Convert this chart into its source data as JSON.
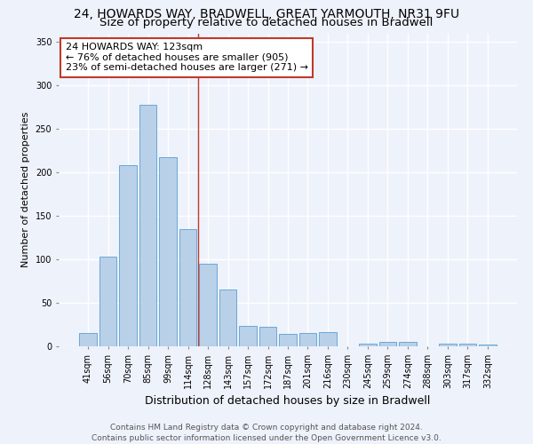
{
  "title_line1": "24, HOWARDS WAY, BRADWELL, GREAT YARMOUTH, NR31 9FU",
  "title_line2": "Size of property relative to detached houses in Bradwell",
  "xlabel": "Distribution of detached houses by size in Bradwell",
  "ylabel": "Number of detached properties",
  "bar_color": "#b8d0e8",
  "bar_edge_color": "#5a9fd4",
  "highlight_color": "#c0392b",
  "categories": [
    "41sqm",
    "56sqm",
    "70sqm",
    "85sqm",
    "99sqm",
    "114sqm",
    "128sqm",
    "143sqm",
    "157sqm",
    "172sqm",
    "187sqm",
    "201sqm",
    "216sqm",
    "230sqm",
    "245sqm",
    "259sqm",
    "274sqm",
    "288sqm",
    "303sqm",
    "317sqm",
    "332sqm"
  ],
  "values": [
    15,
    103,
    208,
    278,
    218,
    135,
    95,
    65,
    24,
    22,
    14,
    15,
    16,
    0,
    3,
    5,
    5,
    0,
    3,
    3,
    2
  ],
  "highlight_index": 5,
  "annotation_line1": "24 HOWARDS WAY: 123sqm",
  "annotation_line2": "← 76% of detached houses are smaller (905)",
  "annotation_line3": "23% of semi-detached houses are larger (271) →",
  "annotation_box_color": "#ffffff",
  "annotation_box_edge": "#c0392b",
  "ylim": [
    0,
    360
  ],
  "yticks": [
    0,
    50,
    100,
    150,
    200,
    250,
    300,
    350
  ],
  "background_color": "#eef2fb",
  "grid_color": "#ffffff",
  "footer_text": "Contains HM Land Registry data © Crown copyright and database right 2024.\nContains public sector information licensed under the Open Government Licence v3.0.",
  "title_fontsize": 10,
  "subtitle_fontsize": 9.5,
  "xlabel_fontsize": 9,
  "ylabel_fontsize": 8,
  "tick_fontsize": 7,
  "annotation_fontsize": 8,
  "footer_fontsize": 6.5
}
